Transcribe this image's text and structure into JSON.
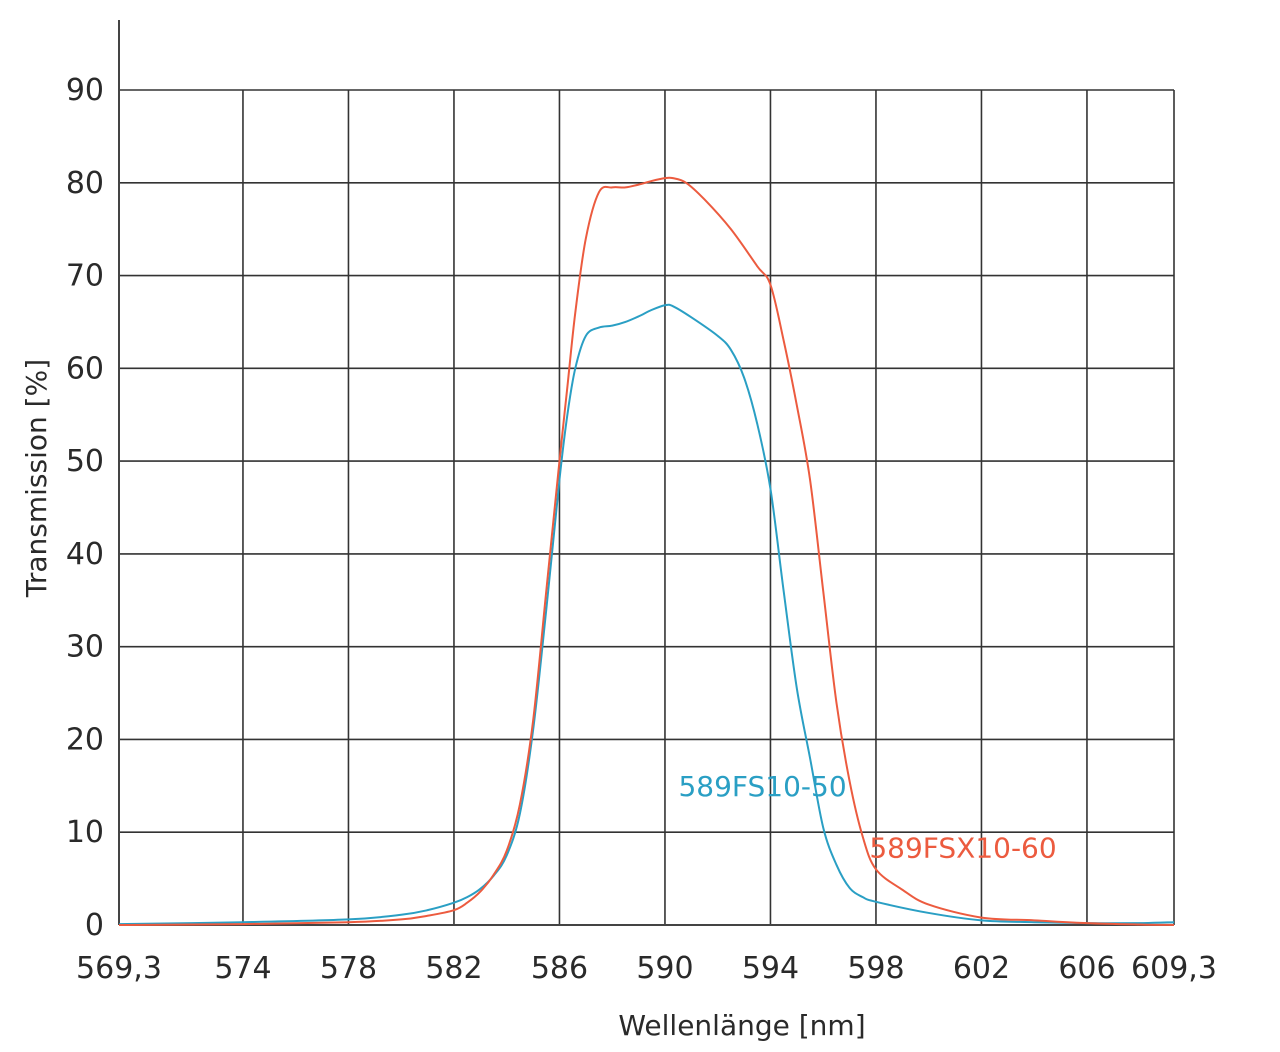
{
  "chart_data": {
    "type": "line",
    "xlabel": "Wellenlänge [nm]",
    "ylabel": "Transmission [%]",
    "xlim": [
      569.3,
      609.3
    ],
    "ylim": [
      0,
      90
    ],
    "grid": true,
    "x_ticks": [
      569.3,
      574,
      578,
      582,
      586,
      590,
      594,
      598,
      602,
      606,
      609.3
    ],
    "x_tick_labels": [
      "569,3",
      "574",
      "578",
      "582",
      "586",
      "590",
      "594",
      "598",
      "602",
      "606",
      "609,3"
    ],
    "y_ticks": [
      0,
      10,
      20,
      30,
      40,
      50,
      60,
      70,
      80,
      90
    ],
    "y_tick_labels": [
      "0",
      "10",
      "20",
      "30",
      "40",
      "50",
      "60",
      "70",
      "80",
      "90"
    ],
    "series": [
      {
        "name": "589FS10-50",
        "color": "#2a9fc4",
        "x": [
          569.3,
          574,
          578,
          580,
          581,
          582,
          582.5,
          583,
          583.5,
          584,
          584.5,
          585,
          585.5,
          586,
          586.3,
          586.6,
          587,
          587.5,
          588,
          588.5,
          589,
          589.5,
          590,
          590.3,
          591,
          592,
          592.5,
          593,
          593.5,
          594,
          594.5,
          595,
          595.5,
          596,
          596.5,
          597,
          597.5,
          598,
          600,
          602,
          604,
          606,
          608,
          609.3
        ],
        "y": [
          0.1,
          0.3,
          0.6,
          1.1,
          1.6,
          2.4,
          3.0,
          3.9,
          5.3,
          7.5,
          12,
          21,
          34,
          48,
          55,
          60,
          63.5,
          64.4,
          64.6,
          65.0,
          65.6,
          66.3,
          66.8,
          66.7,
          65.5,
          63.5,
          62.0,
          59.0,
          54.0,
          47.0,
          36.0,
          25.5,
          18.0,
          10.5,
          6.5,
          4.0,
          3.0,
          2.5,
          1.3,
          0.5,
          0.3,
          0.2,
          0.2,
          0.3
        ]
      },
      {
        "name": "589FSX10-60",
        "color": "#ec5b3f",
        "x": [
          569.3,
          574,
          578,
          580,
          581,
          582,
          582.5,
          583,
          583.5,
          584,
          584.5,
          585,
          585.5,
          586,
          586.3,
          586.6,
          587,
          587.5,
          588,
          588.5,
          589,
          589.5,
          590,
          590.3,
          590.8,
          591.5,
          592.5,
          593.5,
          594,
          594.5,
          595,
          595.5,
          596,
          596.5,
          597,
          597.5,
          598,
          599,
          600,
          602,
          604,
          606,
          608,
          609.3
        ],
        "y": [
          0,
          0.1,
          0.3,
          0.6,
          1.0,
          1.6,
          2.4,
          3.6,
          5.4,
          8.0,
          13,
          22,
          36,
          50,
          58,
          66,
          74,
          79,
          79.5,
          79.5,
          79.8,
          80.2,
          80.5,
          80.5,
          80.0,
          78.2,
          75.0,
          71.0,
          69.0,
          63.0,
          56.0,
          48.0,
          36.0,
          24.0,
          15.5,
          9.5,
          6.0,
          3.8,
          2.2,
          0.8,
          0.5,
          0.2,
          0.05,
          0
        ]
      }
    ],
    "annotations": [
      {
        "text": "589FS10-50",
        "x": 593.7,
        "y": 13.9,
        "color": "#2a9fc4"
      },
      {
        "text": "589FSX10-60",
        "x": 601.3,
        "y": 7.3,
        "color": "#ec5b3f"
      }
    ]
  }
}
